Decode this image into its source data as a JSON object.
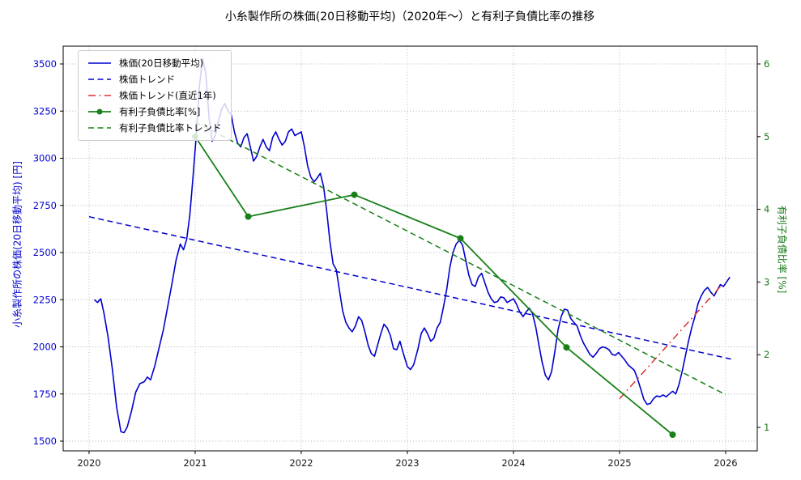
{
  "chart_data": {
    "type": "line",
    "title": "小糸製作所の株価(20日移動平均)（2020年～）と有利子負債比率の推移",
    "xlabel": "",
    "grid": "dotted",
    "legend_position": "upper left",
    "axes": {
      "x": {
        "ticks": [
          2020,
          2021,
          2022,
          2023,
          2024,
          2025,
          2026
        ],
        "range": [
          2019.756,
          2026.298
        ]
      },
      "y_left": {
        "label": "小糸製作所の株価(20日移動平均) [円]",
        "color": "#0000cd",
        "ticks": [
          1500,
          1750,
          2000,
          2250,
          2500,
          2750,
          3000,
          3250,
          3500
        ],
        "range": [
          1448.5,
          3594.4
        ]
      },
      "y_right": {
        "label": "有利子負債比率 [%]",
        "color": "#1a7a1a",
        "ticks": [
          1,
          2,
          3,
          4,
          5,
          6
        ],
        "range": [
          0.677,
          6.245
        ]
      }
    },
    "series": [
      {
        "id": "stock",
        "name": "株価(20日移動平均)",
        "axis": "left",
        "color": "#0000cd",
        "style": "solid",
        "width": 1.6,
        "points": [
          [
            2020.05,
            2250
          ],
          [
            2020.08,
            2235
          ],
          [
            2020.11,
            2255
          ],
          [
            2020.14,
            2180
          ],
          [
            2020.18,
            2050
          ],
          [
            2020.22,
            1880
          ],
          [
            2020.26,
            1680
          ],
          [
            2020.3,
            1550
          ],
          [
            2020.33,
            1545
          ],
          [
            2020.36,
            1575
          ],
          [
            2020.4,
            1660
          ],
          [
            2020.44,
            1760
          ],
          [
            2020.48,
            1805
          ],
          [
            2020.52,
            1815
          ],
          [
            2020.55,
            1840
          ],
          [
            2020.58,
            1825
          ],
          [
            2020.62,
            1900
          ],
          [
            2020.66,
            1995
          ],
          [
            2020.7,
            2090
          ],
          [
            2020.74,
            2210
          ],
          [
            2020.78,
            2330
          ],
          [
            2020.82,
            2460
          ],
          [
            2020.86,
            2545
          ],
          [
            2020.89,
            2515
          ],
          [
            2020.92,
            2570
          ],
          [
            2020.95,
            2700
          ],
          [
            2020.98,
            2900
          ],
          [
            2021.01,
            3120
          ],
          [
            2021.04,
            3380
          ],
          [
            2021.07,
            3530
          ],
          [
            2021.1,
            3450
          ],
          [
            2021.13,
            3220
          ],
          [
            2021.16,
            3090
          ],
          [
            2021.19,
            3120
          ],
          [
            2021.22,
            3200
          ],
          [
            2021.25,
            3260
          ],
          [
            2021.28,
            3290
          ],
          [
            2021.31,
            3250
          ],
          [
            2021.34,
            3230
          ],
          [
            2021.37,
            3140
          ],
          [
            2021.4,
            3080
          ],
          [
            2021.43,
            3060
          ],
          [
            2021.46,
            3110
          ],
          [
            2021.49,
            3130
          ],
          [
            2021.52,
            3060
          ],
          [
            2021.55,
            2985
          ],
          [
            2021.58,
            3010
          ],
          [
            2021.61,
            3060
          ],
          [
            2021.64,
            3100
          ],
          [
            2021.67,
            3060
          ],
          [
            2021.7,
            3040
          ],
          [
            2021.73,
            3110
          ],
          [
            2021.76,
            3140
          ],
          [
            2021.79,
            3100
          ],
          [
            2021.82,
            3070
          ],
          [
            2021.85,
            3090
          ],
          [
            2021.88,
            3140
          ],
          [
            2021.91,
            3155
          ],
          [
            2021.94,
            3120
          ],
          [
            2021.97,
            3130
          ],
          [
            2022.0,
            3140
          ],
          [
            2022.03,
            3060
          ],
          [
            2022.06,
            2960
          ],
          [
            2022.09,
            2900
          ],
          [
            2022.12,
            2875
          ],
          [
            2022.15,
            2895
          ],
          [
            2022.18,
            2920
          ],
          [
            2022.21,
            2850
          ],
          [
            2022.24,
            2720
          ],
          [
            2022.27,
            2560
          ],
          [
            2022.3,
            2440
          ],
          [
            2022.33,
            2410
          ],
          [
            2022.36,
            2300
          ],
          [
            2022.39,
            2190
          ],
          [
            2022.42,
            2130
          ],
          [
            2022.45,
            2100
          ],
          [
            2022.48,
            2080
          ],
          [
            2022.51,
            2110
          ],
          [
            2022.54,
            2160
          ],
          [
            2022.57,
            2140
          ],
          [
            2022.6,
            2080
          ],
          [
            2022.63,
            2010
          ],
          [
            2022.66,
            1965
          ],
          [
            2022.69,
            1950
          ],
          [
            2022.72,
            2010
          ],
          [
            2022.75,
            2070
          ],
          [
            2022.78,
            2120
          ],
          [
            2022.81,
            2100
          ],
          [
            2022.84,
            2060
          ],
          [
            2022.87,
            1990
          ],
          [
            2022.9,
            1985
          ],
          [
            2022.93,
            2030
          ],
          [
            2022.96,
            1970
          ],
          [
            2023.0,
            1895
          ],
          [
            2023.03,
            1880
          ],
          [
            2023.06,
            1905
          ],
          [
            2023.1,
            1990
          ],
          [
            2023.13,
            2070
          ],
          [
            2023.16,
            2100
          ],
          [
            2023.19,
            2070
          ],
          [
            2023.22,
            2030
          ],
          [
            2023.25,
            2045
          ],
          [
            2023.28,
            2100
          ],
          [
            2023.31,
            2130
          ],
          [
            2023.34,
            2210
          ],
          [
            2023.37,
            2300
          ],
          [
            2023.4,
            2420
          ],
          [
            2023.43,
            2500
          ],
          [
            2023.46,
            2545
          ],
          [
            2023.49,
            2565
          ],
          [
            2023.52,
            2540
          ],
          [
            2023.55,
            2460
          ],
          [
            2023.58,
            2380
          ],
          [
            2023.61,
            2330
          ],
          [
            2023.64,
            2320
          ],
          [
            2023.67,
            2370
          ],
          [
            2023.7,
            2390
          ],
          [
            2023.73,
            2340
          ],
          [
            2023.76,
            2290
          ],
          [
            2023.79,
            2255
          ],
          [
            2023.82,
            2235
          ],
          [
            2023.85,
            2240
          ],
          [
            2023.88,
            2265
          ],
          [
            2023.91,
            2260
          ],
          [
            2023.94,
            2235
          ],
          [
            2023.97,
            2245
          ],
          [
            2024.0,
            2255
          ],
          [
            2024.03,
            2225
          ],
          [
            2024.06,
            2185
          ],
          [
            2024.09,
            2160
          ],
          [
            2024.12,
            2185
          ],
          [
            2024.15,
            2205
          ],
          [
            2024.18,
            2175
          ],
          [
            2024.21,
            2105
          ],
          [
            2024.24,
            2010
          ],
          [
            2024.27,
            1920
          ],
          [
            2024.3,
            1850
          ],
          [
            2024.33,
            1825
          ],
          [
            2024.36,
            1870
          ],
          [
            2024.39,
            1975
          ],
          [
            2024.42,
            2090
          ],
          [
            2024.45,
            2160
          ],
          [
            2024.48,
            2200
          ],
          [
            2024.51,
            2195
          ],
          [
            2024.54,
            2150
          ],
          [
            2024.57,
            2130
          ],
          [
            2024.6,
            2110
          ],
          [
            2024.63,
            2060
          ],
          [
            2024.66,
            2020
          ],
          [
            2024.69,
            1990
          ],
          [
            2024.72,
            1960
          ],
          [
            2024.75,
            1945
          ],
          [
            2024.78,
            1965
          ],
          [
            2024.81,
            1990
          ],
          [
            2024.84,
            2000
          ],
          [
            2024.87,
            1995
          ],
          [
            2024.9,
            1985
          ],
          [
            2024.93,
            1960
          ],
          [
            2024.96,
            1955
          ],
          [
            2024.99,
            1970
          ],
          [
            2025.02,
            1950
          ],
          [
            2025.05,
            1930
          ],
          [
            2025.08,
            1905
          ],
          [
            2025.11,
            1890
          ],
          [
            2025.14,
            1875
          ],
          [
            2025.17,
            1830
          ],
          [
            2025.2,
            1775
          ],
          [
            2025.23,
            1720
          ],
          [
            2025.26,
            1695
          ],
          [
            2025.29,
            1700
          ],
          [
            2025.32,
            1725
          ],
          [
            2025.35,
            1740
          ],
          [
            2025.38,
            1735
          ],
          [
            2025.41,
            1745
          ],
          [
            2025.44,
            1735
          ],
          [
            2025.47,
            1750
          ],
          [
            2025.5,
            1765
          ],
          [
            2025.53,
            1750
          ],
          [
            2025.56,
            1800
          ],
          [
            2025.59,
            1870
          ],
          [
            2025.62,
            1950
          ],
          [
            2025.65,
            2030
          ],
          [
            2025.68,
            2100
          ],
          [
            2025.71,
            2160
          ],
          [
            2025.74,
            2230
          ],
          [
            2025.77,
            2270
          ],
          [
            2025.8,
            2300
          ],
          [
            2025.83,
            2315
          ],
          [
            2025.86,
            2290
          ],
          [
            2025.89,
            2270
          ],
          [
            2025.92,
            2300
          ],
          [
            2025.95,
            2330
          ],
          [
            2025.98,
            2320
          ],
          [
            2026.01,
            2345
          ],
          [
            2026.04,
            2370
          ]
        ]
      },
      {
        "id": "stock_trend",
        "name": "株価トレンド",
        "axis": "left",
        "color": "#0000cd",
        "style": "dashed",
        "width": 1.5,
        "points": [
          [
            2020.0,
            2690
          ],
          [
            2026.05,
            1935
          ]
        ]
      },
      {
        "id": "stock_trend_recent",
        "name": "株価トレンド(直近1年)",
        "axis": "left",
        "color": "#e03131",
        "style": "dashdot",
        "width": 1.5,
        "points": [
          [
            2025.0,
            1725
          ],
          [
            2025.95,
            2320
          ]
        ]
      },
      {
        "id": "debt",
        "name": "有利子負債比率[%]",
        "axis": "right",
        "color": "#188018",
        "style": "solid",
        "width": 1.8,
        "marker": "circle",
        "points": [
          [
            2021.0,
            5.0
          ],
          [
            2021.5,
            3.9
          ],
          [
            2022.5,
            4.2
          ],
          [
            2023.5,
            3.6
          ],
          [
            2024.5,
            2.1
          ],
          [
            2025.5,
            0.9
          ]
        ]
      },
      {
        "id": "debt_trend",
        "name": "有利子負債比率トレンド",
        "axis": "right",
        "color": "#188018",
        "style": "dashed",
        "width": 1.5,
        "points": [
          [
            2021.0,
            5.2
          ],
          [
            2026.0,
            1.45
          ]
        ]
      }
    ]
  }
}
